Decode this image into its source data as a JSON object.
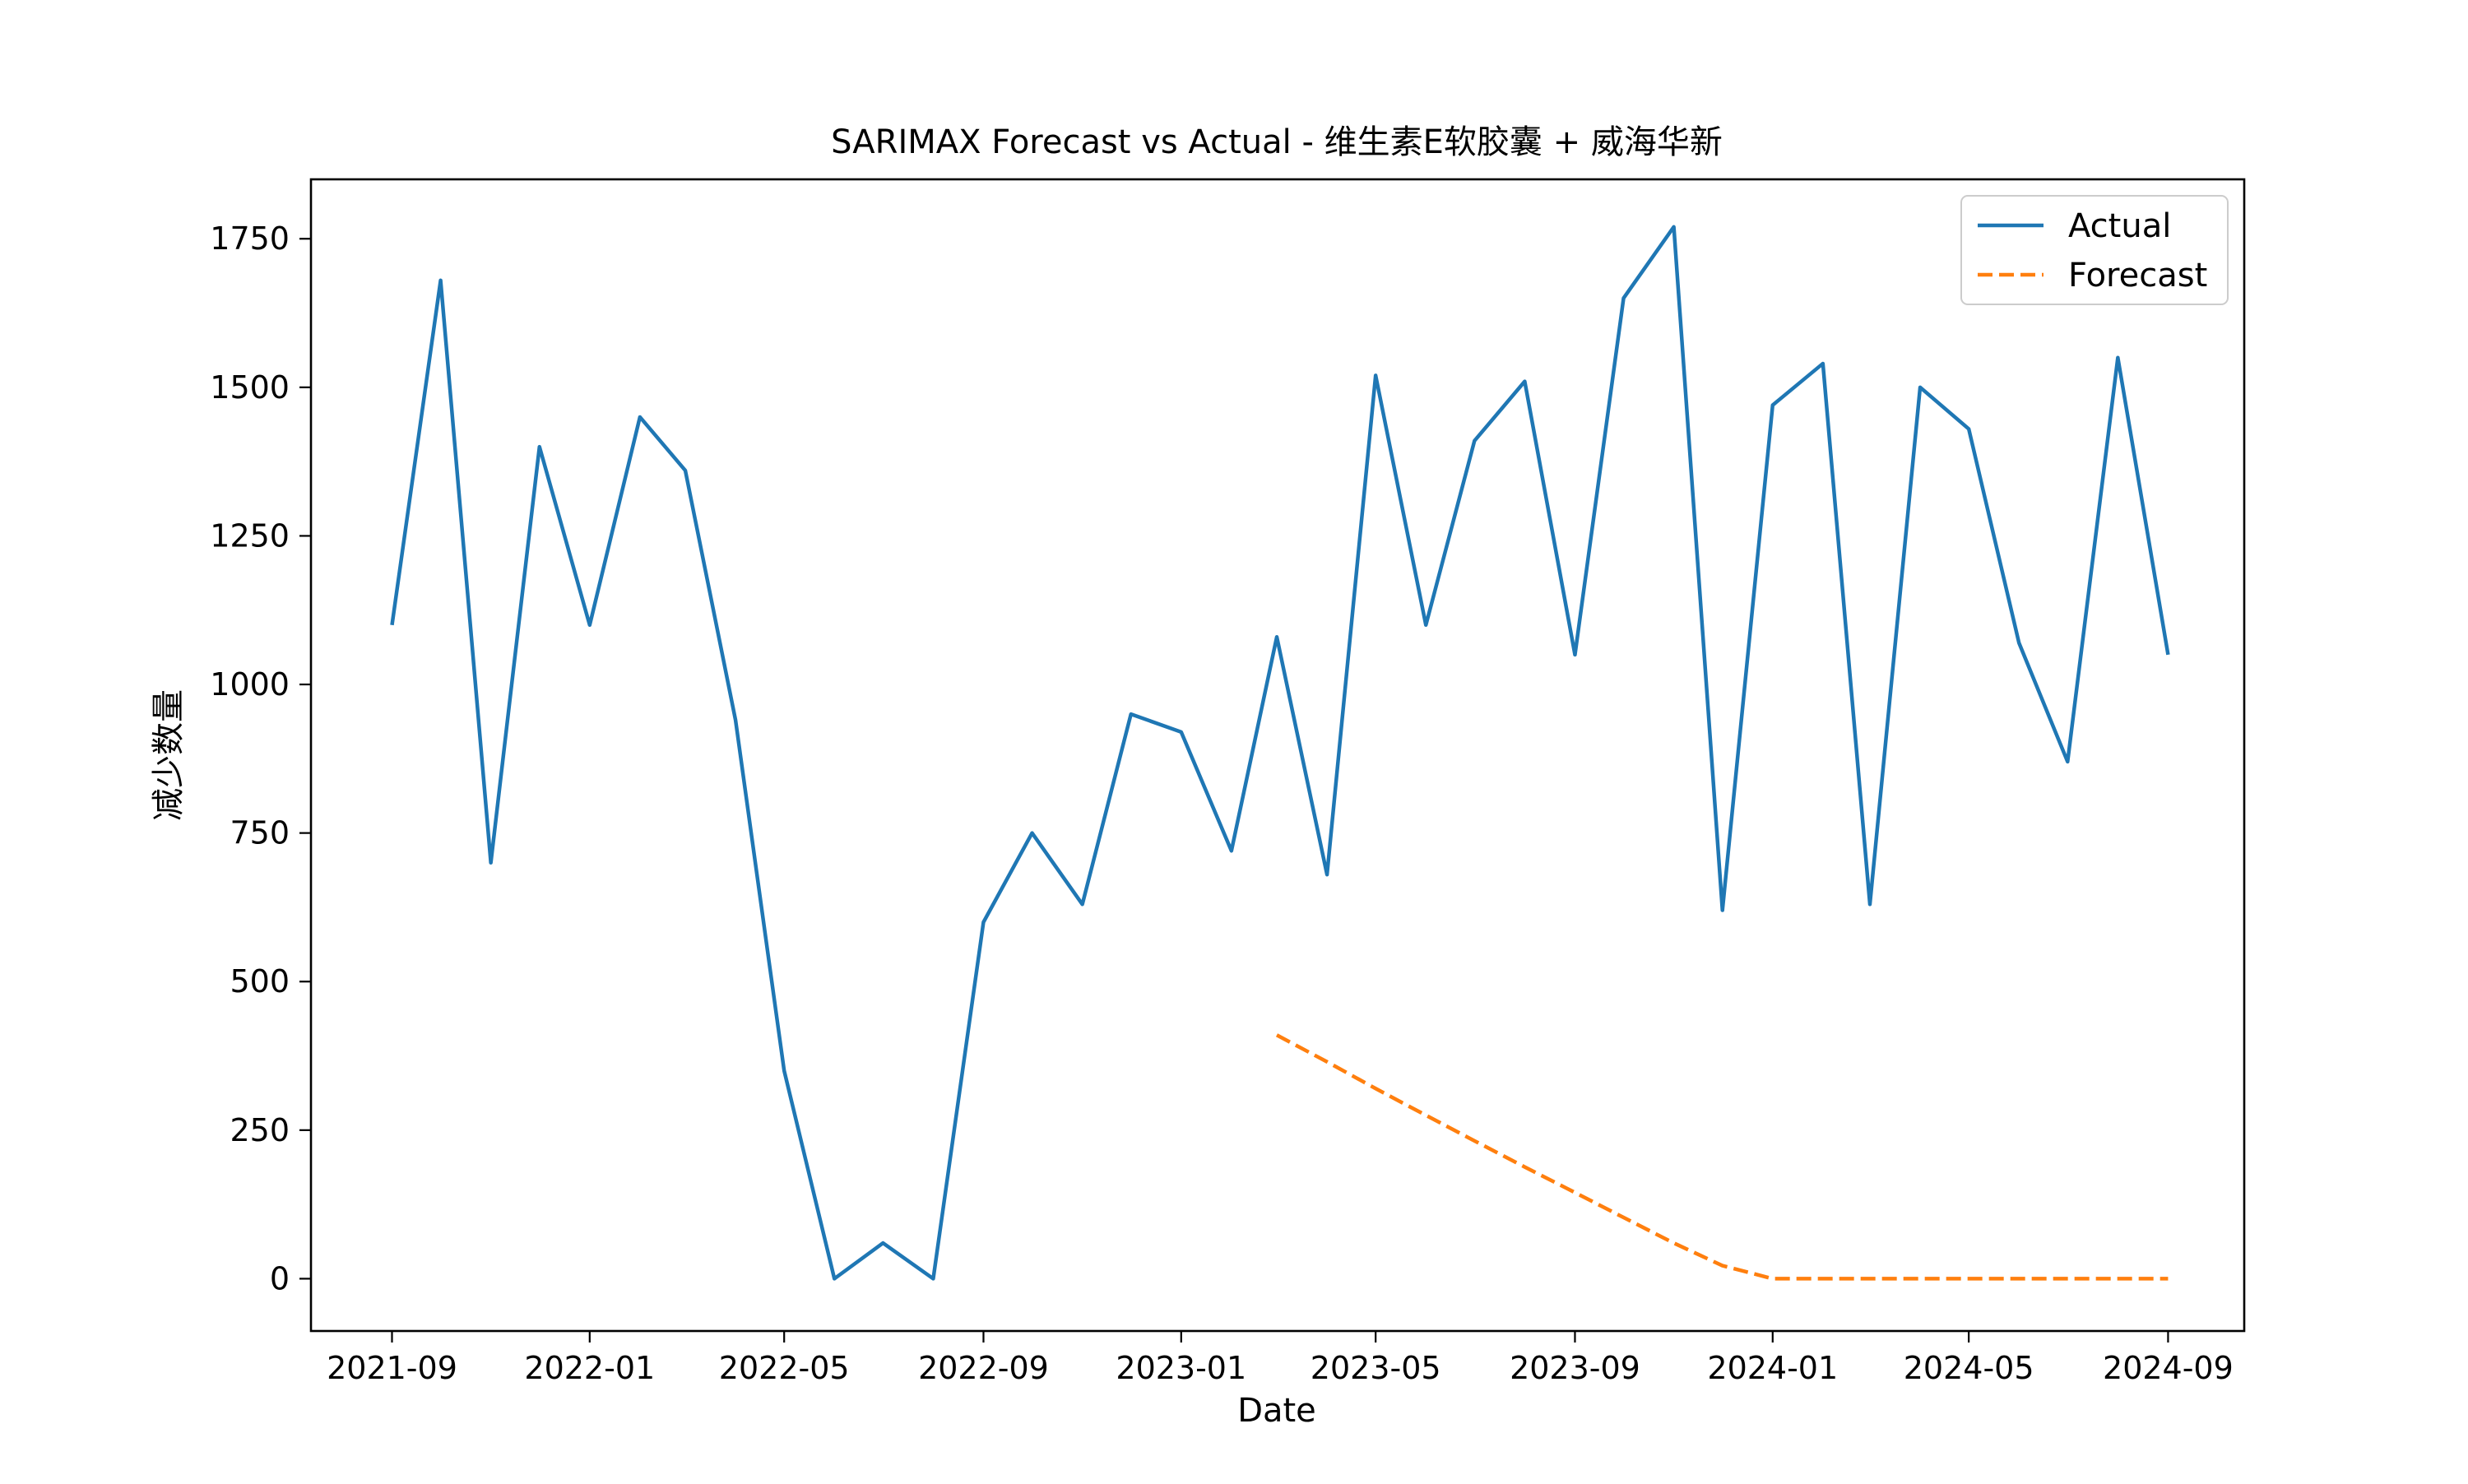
{
  "chart_data": {
    "type": "line",
    "title": "SARIMAX Forecast vs Actual - 维生素E软胶囊 + 威海华新",
    "xlabel": "Date",
    "ylabel": "减少数量",
    "x_ticks": [
      "2021-09",
      "2022-01",
      "2022-05",
      "2022-09",
      "2023-01",
      "2023-05",
      "2023-09",
      "2024-01",
      "2024-05",
      "2024-09"
    ],
    "y_ticks": [
      0,
      250,
      500,
      750,
      1000,
      1250,
      1500,
      1750
    ],
    "xlim": [
      "2021-07-13",
      "2024-10-18"
    ],
    "ylim": [
      -88,
      1850
    ],
    "grid": false,
    "legend_position": "top-right",
    "series": [
      {
        "name": "Actual",
        "color": "#1f77b4",
        "style": "solid",
        "x": [
          "2021-09-01",
          "2021-10-01",
          "2021-11-01",
          "2021-12-01",
          "2022-01-01",
          "2022-02-01",
          "2022-03-01",
          "2022-04-01",
          "2022-05-01",
          "2022-06-01",
          "2022-07-01",
          "2022-08-01",
          "2022-09-01",
          "2022-10-01",
          "2022-11-01",
          "2022-12-01",
          "2023-01-01",
          "2023-02-01",
          "2023-03-01",
          "2023-04-01",
          "2023-05-01",
          "2023-06-01",
          "2023-07-01",
          "2023-08-01",
          "2023-09-01",
          "2023-10-01",
          "2023-11-01",
          "2023-12-01",
          "2024-01-01",
          "2024-02-01",
          "2024-03-01",
          "2024-04-01",
          "2024-05-01",
          "2024-06-01",
          "2024-07-01",
          "2024-08-01",
          "2024-09-01"
        ],
        "values": [
          1100,
          1680,
          700,
          1400,
          1100,
          1450,
          1360,
          940,
          350,
          0,
          60,
          0,
          600,
          750,
          630,
          950,
          920,
          720,
          1080,
          680,
          1520,
          1100,
          1410,
          1510,
          1050,
          1650,
          1770,
          620,
          1470,
          1540,
          630,
          1500,
          1430,
          1070,
          870,
          1550,
          1050
        ]
      },
      {
        "name": "Forecast",
        "color": "#ff7f0e",
        "style": "dashed",
        "x": [
          "2023-03-01",
          "2023-04-01",
          "2023-05-01",
          "2023-06-01",
          "2023-07-01",
          "2023-08-01",
          "2023-09-01",
          "2023-10-01",
          "2023-11-01",
          "2023-12-01",
          "2024-01-01",
          "2024-02-01",
          "2024-03-01",
          "2024-04-01",
          "2024-05-01",
          "2024-06-01",
          "2024-07-01",
          "2024-08-01",
          "2024-09-01"
        ],
        "values": [
          410,
          365,
          320,
          275,
          232,
          188,
          145,
          103,
          60,
          22,
          0,
          0,
          0,
          0,
          0,
          0,
          0,
          0,
          0
        ]
      }
    ]
  }
}
